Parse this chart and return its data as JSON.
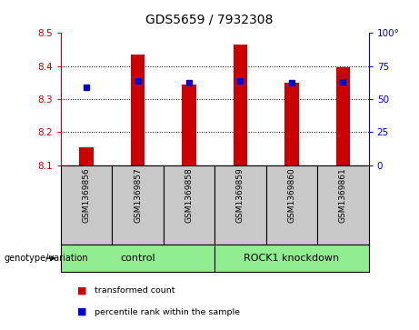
{
  "title": "GDS5659 / 7932308",
  "samples": [
    "GSM1369856",
    "GSM1369857",
    "GSM1369858",
    "GSM1369859",
    "GSM1369860",
    "GSM1369861"
  ],
  "red_values": [
    8.155,
    8.435,
    8.345,
    8.465,
    8.35,
    8.395
  ],
  "blue_values": [
    8.335,
    8.355,
    8.35,
    8.355,
    8.35,
    8.352
  ],
  "ylim": [
    8.1,
    8.5
  ],
  "yticks": [
    8.1,
    8.2,
    8.3,
    8.4,
    8.5
  ],
  "right_yticks": [
    0,
    25,
    50,
    75,
    100
  ],
  "right_ylim": [
    0,
    100
  ],
  "bar_color": "#cc0000",
  "dot_color": "#0000cc",
  "sample_box_color": "#c8c8c8",
  "group1_color": "#90ee90",
  "group2_color": "#90ee90",
  "legend_red_label": "transformed count",
  "legend_blue_label": "percentile rank within the sample",
  "genotype_label": "genotype/variation",
  "title_fontsize": 10,
  "tick_fontsize": 7.5,
  "label_fontsize": 7,
  "group_fontsize": 8
}
